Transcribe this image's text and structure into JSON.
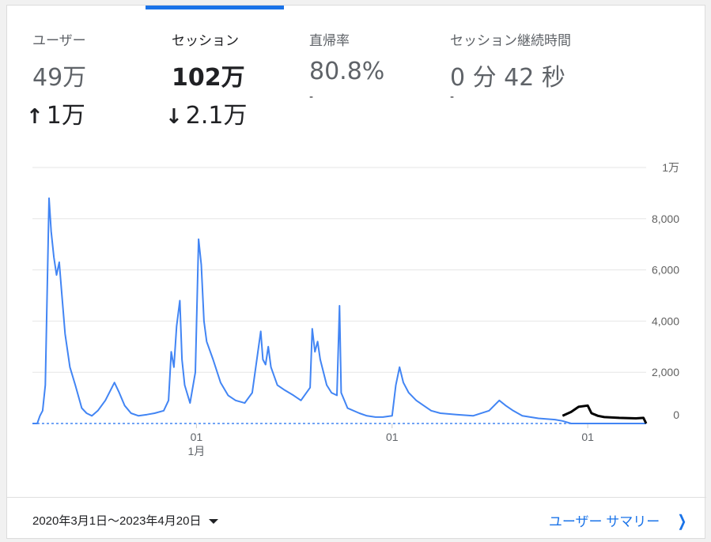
{
  "tabs": [
    {
      "title": "ユーザー",
      "value": "49万",
      "change": "1万",
      "change_dir": "up"
    },
    {
      "title": "セッション",
      "value": "102万",
      "change": "2.1万",
      "change_dir": "down"
    },
    {
      "title": "直帰率",
      "value": "80.8%",
      "change": "-"
    },
    {
      "title": "セッション継続時間",
      "value": "0 分 42 秒",
      "change": "-"
    }
  ],
  "selected_tab": "セッション",
  "chart_data": {
    "type": "line",
    "title": "",
    "xlabel": "",
    "ylabel": "",
    "y_ticks": [
      "0",
      "2,000",
      "4,000",
      "6,000",
      "8,000",
      "1万"
    ],
    "ylim": [
      0,
      10000
    ],
    "x_ticks": [
      {
        "label": "01",
        "sub": "1月",
        "date": "2021-01-01"
      },
      {
        "label": "01",
        "sub": "",
        "date": "2022-01-01"
      },
      {
        "label": "01",
        "sub": "",
        "date": "2023-01-01"
      }
    ],
    "xlim": [
      "2020-03-01",
      "2023-04-20"
    ],
    "series": [
      {
        "color": "#4285f4",
        "points": [
          [
            "2020-03-01",
            0
          ],
          [
            "2020-03-10",
            0
          ],
          [
            "2020-03-15",
            300
          ],
          [
            "2020-03-20",
            500
          ],
          [
            "2020-03-25",
            1500
          ],
          [
            "2020-04-01",
            8800
          ],
          [
            "2020-04-05",
            7500
          ],
          [
            "2020-04-10",
            6500
          ],
          [
            "2020-04-15",
            5800
          ],
          [
            "2020-04-20",
            6300
          ],
          [
            "2020-04-25",
            5000
          ],
          [
            "2020-05-01",
            3500
          ],
          [
            "2020-05-10",
            2200
          ],
          [
            "2020-05-20",
            1500
          ],
          [
            "2020-06-01",
            600
          ],
          [
            "2020-06-10",
            400
          ],
          [
            "2020-06-20",
            300
          ],
          [
            "2020-07-01",
            500
          ],
          [
            "2020-07-15",
            900
          ],
          [
            "2020-08-01",
            1600
          ],
          [
            "2020-08-10",
            1200
          ],
          [
            "2020-08-20",
            700
          ],
          [
            "2020-09-01",
            400
          ],
          [
            "2020-09-15",
            300
          ],
          [
            "2020-10-01",
            350
          ],
          [
            "2020-10-15",
            400
          ],
          [
            "2020-11-01",
            500
          ],
          [
            "2020-11-10",
            900
          ],
          [
            "2020-11-15",
            2800
          ],
          [
            "2020-11-20",
            2200
          ],
          [
            "2020-11-25",
            3800
          ],
          [
            "2020-12-01",
            4800
          ],
          [
            "2020-12-05",
            2500
          ],
          [
            "2020-12-10",
            1500
          ],
          [
            "2020-12-20",
            800
          ],
          [
            "2020-12-30",
            2000
          ],
          [
            "2021-01-05",
            7200
          ],
          [
            "2021-01-10",
            6200
          ],
          [
            "2021-01-15",
            4000
          ],
          [
            "2021-01-20",
            3200
          ],
          [
            "2021-02-01",
            2500
          ],
          [
            "2021-02-15",
            1600
          ],
          [
            "2021-03-01",
            1100
          ],
          [
            "2021-03-15",
            900
          ],
          [
            "2021-04-01",
            800
          ],
          [
            "2021-04-15",
            1200
          ],
          [
            "2021-05-01",
            3600
          ],
          [
            "2021-05-05",
            2500
          ],
          [
            "2021-05-10",
            2300
          ],
          [
            "2021-05-15",
            3000
          ],
          [
            "2021-05-20",
            2200
          ],
          [
            "2021-06-01",
            1500
          ],
          [
            "2021-06-15",
            1300
          ],
          [
            "2021-07-01",
            1100
          ],
          [
            "2021-07-15",
            900
          ],
          [
            "2021-08-01",
            1400
          ],
          [
            "2021-08-05",
            3700
          ],
          [
            "2021-08-10",
            2800
          ],
          [
            "2021-08-15",
            3200
          ],
          [
            "2021-08-20",
            2500
          ],
          [
            "2021-09-01",
            1500
          ],
          [
            "2021-09-10",
            1200
          ],
          [
            "2021-09-20",
            1100
          ],
          [
            "2021-09-25",
            4600
          ],
          [
            "2021-09-28",
            1200
          ],
          [
            "2021-10-10",
            600
          ],
          [
            "2021-11-01",
            400
          ],
          [
            "2021-11-15",
            300
          ],
          [
            "2021-12-01",
            250
          ],
          [
            "2021-12-15",
            250
          ],
          [
            "2022-01-01",
            300
          ],
          [
            "2022-01-08",
            1500
          ],
          [
            "2022-01-15",
            2200
          ],
          [
            "2022-01-22",
            1600
          ],
          [
            "2022-02-01",
            1200
          ],
          [
            "2022-02-15",
            900
          ],
          [
            "2022-03-01",
            700
          ],
          [
            "2022-03-15",
            500
          ],
          [
            "2022-04-01",
            400
          ],
          [
            "2022-05-01",
            350
          ],
          [
            "2022-06-01",
            300
          ],
          [
            "2022-07-01",
            500
          ],
          [
            "2022-07-20",
            900
          ],
          [
            "2022-08-01",
            700
          ],
          [
            "2022-08-15",
            500
          ],
          [
            "2022-09-01",
            300
          ],
          [
            "2022-10-01",
            200
          ],
          [
            "2022-11-01",
            150
          ],
          [
            "2022-11-15",
            100
          ],
          [
            "2022-12-01",
            0
          ],
          [
            "2023-04-20",
            0
          ]
        ]
      },
      {
        "color": "#000000",
        "points": [
          [
            "2022-11-15",
            300
          ],
          [
            "2022-12-01",
            450
          ],
          [
            "2022-12-15",
            650
          ],
          [
            "2023-01-01",
            700
          ],
          [
            "2023-01-08",
            400
          ],
          [
            "2023-01-20",
            300
          ],
          [
            "2023-02-01",
            250
          ],
          [
            "2023-03-01",
            220
          ],
          [
            "2023-04-01",
            200
          ],
          [
            "2023-04-15",
            220
          ],
          [
            "2023-04-20",
            0
          ]
        ]
      }
    ]
  },
  "footer": {
    "date_range": "2020年3月1日～2023年4月20日",
    "summary_link": "ユーザー サマリー"
  },
  "colors": {
    "accent": "#1a73e8",
    "series_primary": "#4285f4",
    "series_compare": "#000000"
  }
}
